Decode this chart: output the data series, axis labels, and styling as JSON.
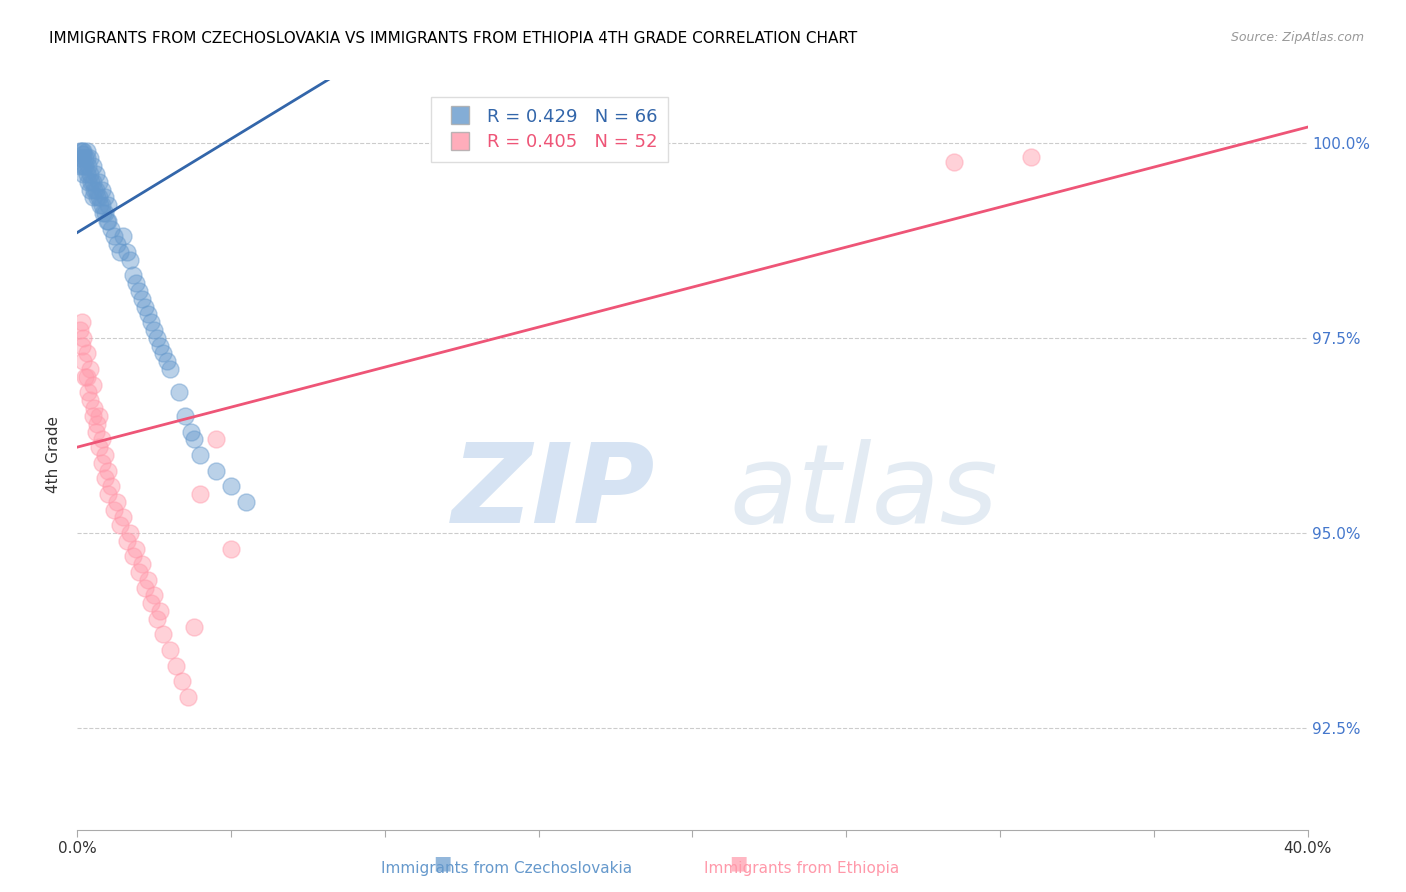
{
  "title": "IMMIGRANTS FROM CZECHOSLOVAKIA VS IMMIGRANTS FROM ETHIOPIA 4TH GRADE CORRELATION CHART",
  "source": "Source: ZipAtlas.com",
  "ylabel": "4th Grade",
  "ylabel_right_ticks": [
    92.5,
    95.0,
    97.5,
    100.0
  ],
  "ylabel_right_labels": [
    "92.5%",
    "95.0%",
    "97.5%",
    "100.0%"
  ],
  "xmin": 0.0,
  "xmax": 40.0,
  "ymin": 91.2,
  "ymax": 100.8,
  "blue_R": 0.429,
  "blue_N": 66,
  "pink_R": 0.405,
  "pink_N": 52,
  "blue_color": "#6699CC",
  "pink_color": "#FF99AA",
  "blue_line_color": "#3366AA",
  "pink_line_color": "#EE5577",
  "legend_blue_label": "Immigrants from Czechoslovakia",
  "legend_pink_label": "Immigrants from Ethiopia",
  "blue_trend_x0": 0.0,
  "blue_trend_y0": 98.85,
  "blue_trend_x1": 5.0,
  "blue_trend_y1": 100.05,
  "pink_trend_x0": 0.0,
  "pink_trend_y0": 96.1,
  "pink_trend_x1": 40.0,
  "pink_trend_y1": 100.2,
  "blue_scatter_x": [
    0.1,
    0.1,
    0.1,
    0.15,
    0.15,
    0.2,
    0.2,
    0.2,
    0.2,
    0.25,
    0.25,
    0.3,
    0.3,
    0.3,
    0.35,
    0.35,
    0.4,
    0.4,
    0.4,
    0.45,
    0.5,
    0.5,
    0.5,
    0.55,
    0.6,
    0.6,
    0.65,
    0.7,
    0.7,
    0.75,
    0.8,
    0.8,
    0.85,
    0.9,
    0.9,
    0.95,
    1.0,
    1.0,
    1.1,
    1.2,
    1.3,
    1.4,
    1.5,
    1.6,
    1.7,
    1.8,
    1.9,
    2.0,
    2.1,
    2.2,
    2.3,
    2.4,
    2.5,
    2.6,
    2.7,
    2.8,
    2.9,
    3.0,
    3.3,
    3.5,
    3.7,
    3.8,
    4.0,
    4.5,
    5.0,
    5.5
  ],
  "blue_scatter_y": [
    99.9,
    99.8,
    99.7,
    99.9,
    99.8,
    99.9,
    99.85,
    99.7,
    99.6,
    99.8,
    99.7,
    99.9,
    99.8,
    99.6,
    99.7,
    99.5,
    99.8,
    99.6,
    99.4,
    99.5,
    99.7,
    99.5,
    99.3,
    99.4,
    99.6,
    99.4,
    99.3,
    99.5,
    99.3,
    99.2,
    99.4,
    99.2,
    99.1,
    99.3,
    99.1,
    99.0,
    99.2,
    99.0,
    98.9,
    98.8,
    98.7,
    98.6,
    98.8,
    98.6,
    98.5,
    98.3,
    98.2,
    98.1,
    98.0,
    97.9,
    97.8,
    97.7,
    97.6,
    97.5,
    97.4,
    97.3,
    97.2,
    97.1,
    96.8,
    96.5,
    96.3,
    96.2,
    96.0,
    95.8,
    95.6,
    95.4
  ],
  "pink_scatter_x": [
    0.1,
    0.15,
    0.15,
    0.2,
    0.2,
    0.25,
    0.3,
    0.3,
    0.35,
    0.4,
    0.4,
    0.5,
    0.5,
    0.55,
    0.6,
    0.65,
    0.7,
    0.7,
    0.8,
    0.8,
    0.9,
    0.9,
    1.0,
    1.0,
    1.1,
    1.2,
    1.3,
    1.4,
    1.5,
    1.6,
    1.7,
    1.8,
    1.9,
    2.0,
    2.1,
    2.2,
    2.3,
    2.4,
    2.5,
    2.6,
    2.7,
    2.8,
    3.0,
    3.2,
    3.4,
    3.6,
    3.8,
    4.0,
    4.5,
    5.0,
    28.5,
    31.0
  ],
  "pink_scatter_y": [
    97.6,
    97.7,
    97.4,
    97.5,
    97.2,
    97.0,
    97.3,
    97.0,
    96.8,
    97.1,
    96.7,
    96.9,
    96.5,
    96.6,
    96.3,
    96.4,
    96.5,
    96.1,
    96.2,
    95.9,
    96.0,
    95.7,
    95.8,
    95.5,
    95.6,
    95.3,
    95.4,
    95.1,
    95.2,
    94.9,
    95.0,
    94.7,
    94.8,
    94.5,
    94.6,
    94.3,
    94.4,
    94.1,
    94.2,
    93.9,
    94.0,
    93.7,
    93.5,
    93.3,
    93.1,
    92.9,
    93.8,
    95.5,
    96.2,
    94.8,
    99.75,
    99.82
  ]
}
